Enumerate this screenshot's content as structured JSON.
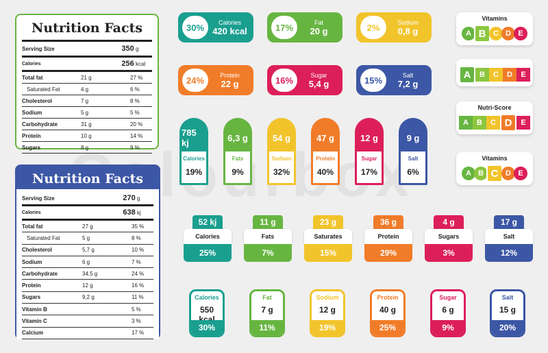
{
  "colors": {
    "teal": "#1a9f8f",
    "green": "#67b541",
    "yellow": "#f2c42c",
    "orange": "#f07c29",
    "red": "#dc1f5a",
    "blue": "#3c57a5"
  },
  "facts_green": {
    "title": "Nutrition Facts",
    "serving_label": "Serving Size",
    "serving_value": "350",
    "serving_unit": "g",
    "calories_label": "Calories",
    "calories_value": "256",
    "calories_unit": "kcal",
    "rows": [
      {
        "n": "Total fat",
        "a": "21 g",
        "p": "27 %"
      },
      {
        "n": "Saturated Fat",
        "a": "4 g",
        "p": "6 %"
      },
      {
        "n": "Cholesterol",
        "a": "7 g",
        "p": "8 %"
      },
      {
        "n": "Sodium",
        "a": "5 g",
        "p": "5 %"
      },
      {
        "n": "Carbohydrate",
        "a": "31 g",
        "p": "20 %"
      },
      {
        "n": "Protein",
        "a": "10 g",
        "p": "14 %"
      },
      {
        "n": "Sugars",
        "a": "8 g",
        "p": "9 %"
      }
    ]
  },
  "facts_blue": {
    "title": "Nutrition Facts",
    "serving_label": "Serving Size",
    "serving_value": "270",
    "serving_unit": "g",
    "calories_label": "Calories",
    "calories_value": "638",
    "calories_unit": "kj",
    "rows": [
      {
        "n": "Total fat",
        "a": "27 g",
        "p": "35 %"
      },
      {
        "n": "Saturated Fat",
        "a": "5 g",
        "p": "8 %"
      },
      {
        "n": "Cholesterol",
        "a": "5,7 g",
        "p": "10 %"
      },
      {
        "n": "Sodium",
        "a": "6 g",
        "p": "7 %"
      },
      {
        "n": "Carbohydrate",
        "a": "34,5 g",
        "p": "24 %"
      },
      {
        "n": "Protein",
        "a": "12 g",
        "p": "16 %"
      },
      {
        "n": "Sugars",
        "a": "9,2 g",
        "p": "11 %"
      },
      {
        "n": "Vitamin B",
        "a": "",
        "p": "5 %"
      },
      {
        "n": "Vitamin C",
        "a": "",
        "p": "3 %"
      },
      {
        "n": "Calcium",
        "a": "",
        "p": "17 %"
      }
    ]
  },
  "pills": [
    {
      "pct": "30%",
      "name": "Calories",
      "value": "420 kcal"
    },
    {
      "pct": "17%",
      "name": "Fat",
      "value": "20 g"
    },
    {
      "pct": "2%",
      "name": "Sodium",
      "value": "0,8 g"
    },
    {
      "pct": "24%",
      "name": "Protein",
      "value": "22 g"
    },
    {
      "pct": "16%",
      "name": "Sugar",
      "value": "5,4 g"
    },
    {
      "pct": "15%",
      "name": "Salt",
      "value": "7,2 g"
    }
  ],
  "tall": [
    {
      "value": "785 kj",
      "name": "Calories",
      "pct": "19%"
    },
    {
      "value": "6,3 g",
      "name": "Fats",
      "pct": "9%"
    },
    {
      "value": "54 g",
      "name": "Sodium",
      "pct": "32%"
    },
    {
      "value": "47 g",
      "name": "Protein",
      "pct": "40%"
    },
    {
      "value": "12 g",
      "name": "Sugar",
      "pct": "17%"
    },
    {
      "value": "9 g",
      "name": "Salt",
      "pct": "6%"
    }
  ],
  "row3": [
    {
      "value": "52 kj",
      "name": "Calories",
      "pct": "25%"
    },
    {
      "value": "11 g",
      "name": "Fats",
      "pct": "7%"
    },
    {
      "value": "23 g",
      "name": "Saturates",
      "pct": "15%"
    },
    {
      "value": "36 g",
      "name": "Protein",
      "pct": "29%"
    },
    {
      "value": "4 g",
      "name": "Sugars",
      "pct": "3%"
    },
    {
      "value": "17 g",
      "name": "Salt",
      "pct": "12%"
    }
  ],
  "row4": [
    {
      "name": "Calories",
      "value": "550 kcal",
      "pct": "30%"
    },
    {
      "name": "Fat",
      "value": "7 g",
      "pct": "11%"
    },
    {
      "name": "Sodium",
      "value": "12 g",
      "pct": "19%"
    },
    {
      "name": "Protein",
      "value": "40 g",
      "pct": "25%"
    },
    {
      "name": "Sugar",
      "value": "6 g",
      "pct": "9%"
    },
    {
      "name": "Salt",
      "value": "15 g",
      "pct": "20%"
    }
  ],
  "scores": [
    {
      "title": "Vitamins",
      "highlight": "B",
      "shape": "circle"
    },
    {
      "title": "",
      "highlight": "A",
      "shape": "square"
    },
    {
      "title": "Nutri-Score",
      "highlight": "D",
      "shape": "square"
    },
    {
      "title": "Vitamins",
      "highlight": "C",
      "shape": "circle"
    }
  ],
  "score_letters": [
    "A",
    "B",
    "C",
    "D",
    "E"
  ],
  "watermark": "Colourbox"
}
